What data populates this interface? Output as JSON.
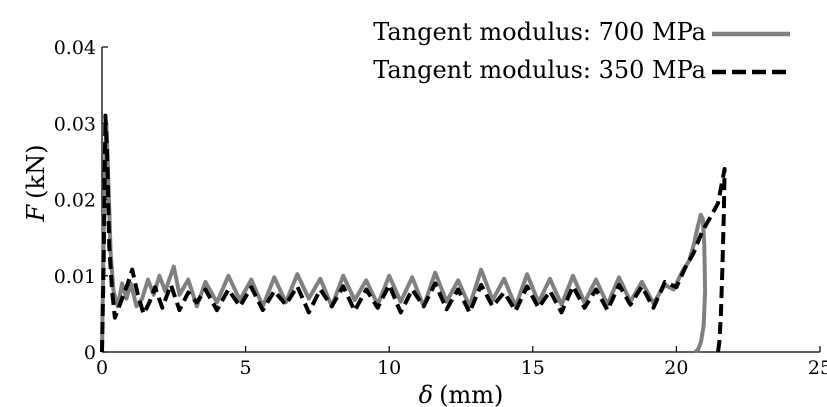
{
  "chart_data": {
    "type": "line",
    "title": "",
    "xlabel_symbol": "δ",
    "xlabel_unit": "(mm)",
    "ylabel_symbol": "F",
    "ylabel_unit": "(kN)",
    "xlim": [
      0,
      25
    ],
    "ylim": [
      0,
      0.04
    ],
    "x_ticks": [
      "0",
      "5",
      "10",
      "15",
      "20",
      "25"
    ],
    "y_ticks": [
      "0",
      "0.01",
      "0.02",
      "0.03",
      "0.04"
    ],
    "x_tick_values": [
      0,
      5,
      10,
      15,
      20,
      25
    ],
    "y_tick_values": [
      0,
      0.01,
      0.02,
      0.03,
      0.04
    ],
    "grid": false,
    "legend_position": "top-right",
    "series": [
      {
        "name": "Tangent modulus: 700 MPa",
        "style": "solid",
        "color": "#808080",
        "x": [
          0.0,
          0.08,
          0.15,
          0.2,
          0.3,
          0.4,
          0.55,
          0.7,
          0.85,
          1.0,
          1.2,
          1.4,
          1.6,
          1.8,
          2.0,
          2.2,
          2.5,
          2.7,
          3.0,
          3.3,
          3.6,
          4.0,
          4.4,
          4.8,
          5.2,
          5.6,
          6.0,
          6.4,
          6.8,
          7.2,
          7.6,
          8.0,
          8.4,
          8.8,
          9.2,
          9.6,
          10.0,
          10.4,
          10.8,
          11.2,
          11.6,
          12.0,
          12.4,
          12.8,
          13.2,
          13.6,
          14.0,
          14.4,
          14.8,
          15.2,
          15.6,
          16.0,
          16.4,
          16.8,
          17.2,
          17.6,
          18.0,
          18.4,
          18.8,
          19.2,
          19.6,
          19.9,
          20.2,
          20.45,
          20.6,
          20.75,
          20.85,
          20.92,
          20.97,
          21.0,
          20.95,
          20.85,
          20.75,
          20.65
        ],
        "y": [
          0.0,
          0.022,
          0.03,
          0.025,
          0.013,
          0.008,
          0.006,
          0.009,
          0.007,
          0.009,
          0.006,
          0.007,
          0.0095,
          0.0075,
          0.01,
          0.008,
          0.0112,
          0.0075,
          0.0095,
          0.006,
          0.0092,
          0.0065,
          0.01,
          0.0068,
          0.0095,
          0.006,
          0.0098,
          0.0065,
          0.0102,
          0.007,
          0.0096,
          0.006,
          0.01,
          0.0068,
          0.0094,
          0.0062,
          0.01,
          0.0066,
          0.0098,
          0.006,
          0.0104,
          0.0066,
          0.0094,
          0.006,
          0.0108,
          0.0068,
          0.0096,
          0.006,
          0.0102,
          0.0065,
          0.0096,
          0.0062,
          0.01,
          0.0065,
          0.0095,
          0.0062,
          0.0098,
          0.0066,
          0.0092,
          0.0064,
          0.0088,
          0.0082,
          0.0105,
          0.012,
          0.014,
          0.0165,
          0.018,
          0.0175,
          0.014,
          0.008,
          0.0035,
          0.0012,
          0.0003,
          0.0
        ]
      },
      {
        "name": "Tangent modulus: 350 MPa",
        "style": "dashed",
        "color": "#000000",
        "x": [
          0.0,
          0.06,
          0.12,
          0.18,
          0.25,
          0.35,
          0.45,
          0.6,
          0.75,
          0.9,
          1.05,
          1.25,
          1.45,
          1.65,
          1.85,
          2.1,
          2.4,
          2.7,
          3.0,
          3.3,
          3.6,
          4.0,
          4.4,
          4.8,
          5.2,
          5.6,
          6.0,
          6.4,
          6.8,
          7.2,
          7.6,
          8.0,
          8.4,
          8.8,
          9.2,
          9.6,
          10.0,
          10.4,
          10.8,
          11.2,
          11.6,
          12.0,
          12.4,
          12.8,
          13.2,
          13.6,
          14.0,
          14.4,
          14.8,
          15.2,
          15.6,
          16.0,
          16.4,
          16.8,
          17.2,
          17.6,
          18.0,
          18.4,
          18.8,
          19.2,
          19.6,
          20.0,
          20.3,
          20.6,
          20.9,
          21.2,
          21.45,
          21.6,
          21.68,
          21.65,
          21.6,
          21.55,
          21.5,
          21.45
        ],
        "y": [
          0.0,
          0.012,
          0.031,
          0.026,
          0.014,
          0.008,
          0.0045,
          0.006,
          0.0075,
          0.009,
          0.0108,
          0.0075,
          0.005,
          0.0065,
          0.0085,
          0.0058,
          0.0088,
          0.0055,
          0.0078,
          0.0065,
          0.0082,
          0.0055,
          0.0082,
          0.006,
          0.0085,
          0.0055,
          0.008,
          0.0062,
          0.0086,
          0.0052,
          0.0082,
          0.006,
          0.0086,
          0.0054,
          0.0082,
          0.0058,
          0.0088,
          0.0052,
          0.0082,
          0.006,
          0.009,
          0.0056,
          0.0082,
          0.0052,
          0.0088,
          0.006,
          0.0078,
          0.0054,
          0.0086,
          0.0058,
          0.008,
          0.0052,
          0.0086,
          0.0058,
          0.0082,
          0.0055,
          0.0088,
          0.0062,
          0.0086,
          0.0058,
          0.0092,
          0.0085,
          0.011,
          0.013,
          0.0158,
          0.0178,
          0.0195,
          0.0225,
          0.024,
          0.018,
          0.011,
          0.005,
          0.0015,
          0.0
        ]
      }
    ]
  }
}
